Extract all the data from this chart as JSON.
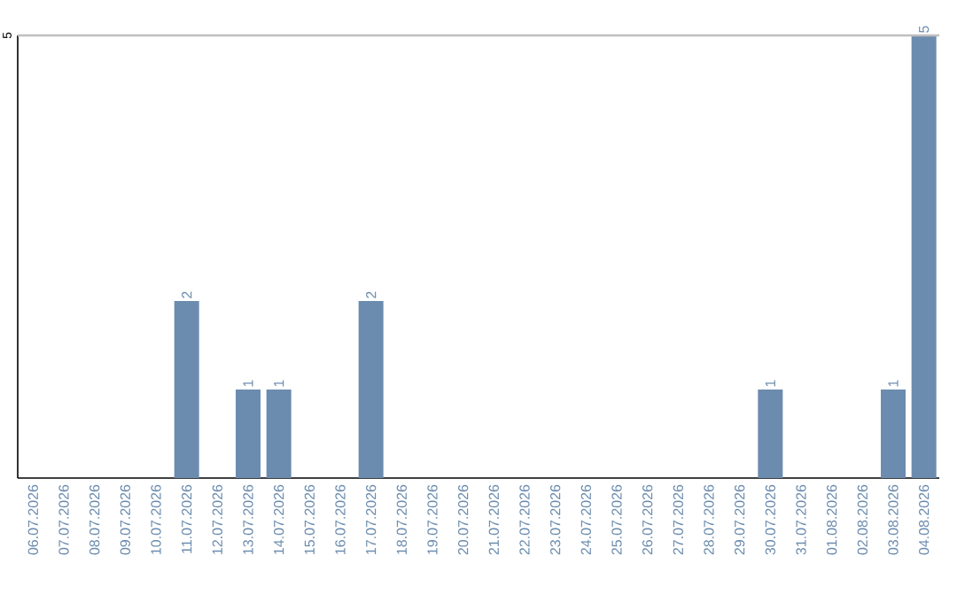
{
  "chart_data": {
    "type": "bar",
    "categories": [
      "06.07.2026",
      "07.07.2026",
      "08.07.2026",
      "09.07.2026",
      "10.07.2026",
      "11.07.2026",
      "12.07.2026",
      "13.07.2026",
      "14.07.2026",
      "15.07.2026",
      "16.07.2026",
      "17.07.2026",
      "18.07.2026",
      "19.07.2026",
      "20.07.2026",
      "21.07.2026",
      "22.07.2026",
      "23.07.2026",
      "24.07.2026",
      "25.07.2026",
      "26.07.2026",
      "27.07.2026",
      "28.07.2026",
      "29.07.2026",
      "30.07.2026",
      "31.07.2026",
      "01.08.2026",
      "02.08.2026",
      "03.08.2026",
      "04.08.2026"
    ],
    "values": [
      0,
      0,
      0,
      0,
      0,
      2,
      0,
      1,
      1,
      0,
      0,
      2,
      0,
      0,
      0,
      0,
      0,
      0,
      0,
      0,
      0,
      0,
      0,
      0,
      1,
      0,
      0,
      0,
      1,
      5
    ],
    "value_labels": [
      null,
      null,
      null,
      null,
      null,
      "2",
      null,
      "1",
      "1",
      null,
      null,
      "2",
      null,
      null,
      null,
      null,
      null,
      null,
      null,
      null,
      null,
      null,
      null,
      null,
      "1",
      null,
      null,
      null,
      "1",
      "5"
    ],
    "color": "#6b8cae",
    "ylim": [
      0,
      5
    ],
    "yticks": [
      5
    ]
  }
}
